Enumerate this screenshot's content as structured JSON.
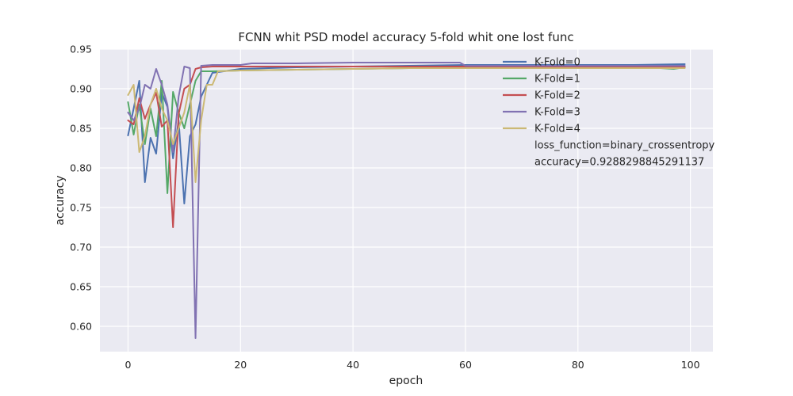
{
  "chart_data": {
    "type": "line",
    "title": "FCNN whit PSD model accuracy 5-fold whit one lost func",
    "xlabel": "epoch",
    "ylabel": "accuracy",
    "xlim": [
      -5,
      104
    ],
    "ylim": [
      0.568,
      0.95
    ],
    "xticks": [
      0,
      20,
      40,
      60,
      80,
      100
    ],
    "yticks": [
      0.6,
      0.65,
      0.7,
      0.75,
      0.8,
      0.85,
      0.9,
      0.95
    ],
    "grid": true,
    "background": "#eaeaf2",
    "legend_position": "upper-right",
    "annotations": [
      "loss_function=binary_crossentropy",
      "accuracy=0.9288298845291137"
    ],
    "series": [
      {
        "name": "K-Fold=0",
        "color": "#4c72b0",
        "points": [
          [
            0,
            0.841
          ],
          [
            1,
            0.875
          ],
          [
            2,
            0.91
          ],
          [
            3,
            0.782
          ],
          [
            4,
            0.838
          ],
          [
            5,
            0.818
          ],
          [
            6,
            0.895
          ],
          [
            7,
            0.877
          ],
          [
            8,
            0.812
          ],
          [
            9,
            0.86
          ],
          [
            10,
            0.755
          ],
          [
            11,
            0.84
          ],
          [
            12,
            0.855
          ],
          [
            13,
            0.89
          ],
          [
            14,
            0.905
          ],
          [
            15,
            0.92
          ],
          [
            20,
            0.925
          ],
          [
            30,
            0.927
          ],
          [
            40,
            0.928
          ],
          [
            50,
            0.929
          ],
          [
            60,
            0.93
          ],
          [
            70,
            0.93
          ],
          [
            80,
            0.93
          ],
          [
            90,
            0.93
          ],
          [
            99,
            0.931
          ]
        ]
      },
      {
        "name": "K-Fold=1",
        "color": "#55a868",
        "points": [
          [
            0,
            0.883
          ],
          [
            1,
            0.842
          ],
          [
            2,
            0.88
          ],
          [
            3,
            0.83
          ],
          [
            4,
            0.875
          ],
          [
            5,
            0.84
          ],
          [
            6,
            0.91
          ],
          [
            7,
            0.768
          ],
          [
            8,
            0.896
          ],
          [
            9,
            0.87
          ],
          [
            10,
            0.85
          ],
          [
            11,
            0.88
          ],
          [
            12,
            0.91
          ],
          [
            13,
            0.922
          ],
          [
            14,
            0.922
          ],
          [
            15,
            0.922
          ],
          [
            20,
            0.923
          ],
          [
            30,
            0.924
          ],
          [
            40,
            0.925
          ],
          [
            50,
            0.926
          ],
          [
            60,
            0.927
          ],
          [
            70,
            0.927
          ],
          [
            80,
            0.928
          ],
          [
            90,
            0.928
          ],
          [
            97,
            0.925
          ],
          [
            99,
            0.927
          ]
        ]
      },
      {
        "name": "K-Fold=2",
        "color": "#c44e52",
        "points": [
          [
            0,
            0.86
          ],
          [
            1,
            0.855
          ],
          [
            2,
            0.888
          ],
          [
            3,
            0.862
          ],
          [
            4,
            0.88
          ],
          [
            5,
            0.895
          ],
          [
            6,
            0.852
          ],
          [
            7,
            0.86
          ],
          [
            8,
            0.725
          ],
          [
            9,
            0.868
          ],
          [
            10,
            0.9
          ],
          [
            11,
            0.905
          ],
          [
            12,
            0.925
          ],
          [
            13,
            0.927
          ],
          [
            15,
            0.928
          ],
          [
            20,
            0.928
          ],
          [
            30,
            0.928
          ],
          [
            40,
            0.928
          ],
          [
            50,
            0.928
          ],
          [
            60,
            0.928
          ],
          [
            70,
            0.928
          ],
          [
            80,
            0.928
          ],
          [
            90,
            0.928
          ],
          [
            99,
            0.928
          ]
        ]
      },
      {
        "name": "K-Fold=3",
        "color": "#8172b2",
        "points": [
          [
            0,
            0.87
          ],
          [
            1,
            0.86
          ],
          [
            2,
            0.875
          ],
          [
            3,
            0.905
          ],
          [
            4,
            0.9
          ],
          [
            5,
            0.925
          ],
          [
            6,
            0.905
          ],
          [
            7,
            0.88
          ],
          [
            8,
            0.82
          ],
          [
            9,
            0.89
          ],
          [
            10,
            0.928
          ],
          [
            11,
            0.926
          ],
          [
            12,
            0.585
          ],
          [
            13,
            0.929
          ],
          [
            15,
            0.93
          ],
          [
            20,
            0.93
          ],
          [
            22,
            0.932
          ],
          [
            30,
            0.932
          ],
          [
            40,
            0.933
          ],
          [
            50,
            0.933
          ],
          [
            59,
            0.933
          ],
          [
            60,
            0.929
          ],
          [
            70,
            0.929
          ],
          [
            80,
            0.929
          ],
          [
            90,
            0.929
          ],
          [
            99,
            0.929
          ]
        ]
      },
      {
        "name": "K-Fold=4",
        "color": "#ccb974",
        "points": [
          [
            0,
            0.892
          ],
          [
            1,
            0.905
          ],
          [
            2,
            0.82
          ],
          [
            3,
            0.84
          ],
          [
            4,
            0.88
          ],
          [
            5,
            0.9
          ],
          [
            6,
            0.875
          ],
          [
            7,
            0.86
          ],
          [
            8,
            0.83
          ],
          [
            9,
            0.85
          ],
          [
            10,
            0.87
          ],
          [
            11,
            0.905
          ],
          [
            12,
            0.782
          ],
          [
            13,
            0.86
          ],
          [
            14,
            0.905
          ],
          [
            15,
            0.905
          ],
          [
            16,
            0.922
          ],
          [
            20,
            0.923
          ],
          [
            30,
            0.924
          ],
          [
            40,
            0.925
          ],
          [
            50,
            0.926
          ],
          [
            60,
            0.926
          ],
          [
            70,
            0.926
          ],
          [
            80,
            0.926
          ],
          [
            90,
            0.926
          ],
          [
            99,
            0.926
          ]
        ]
      }
    ]
  }
}
